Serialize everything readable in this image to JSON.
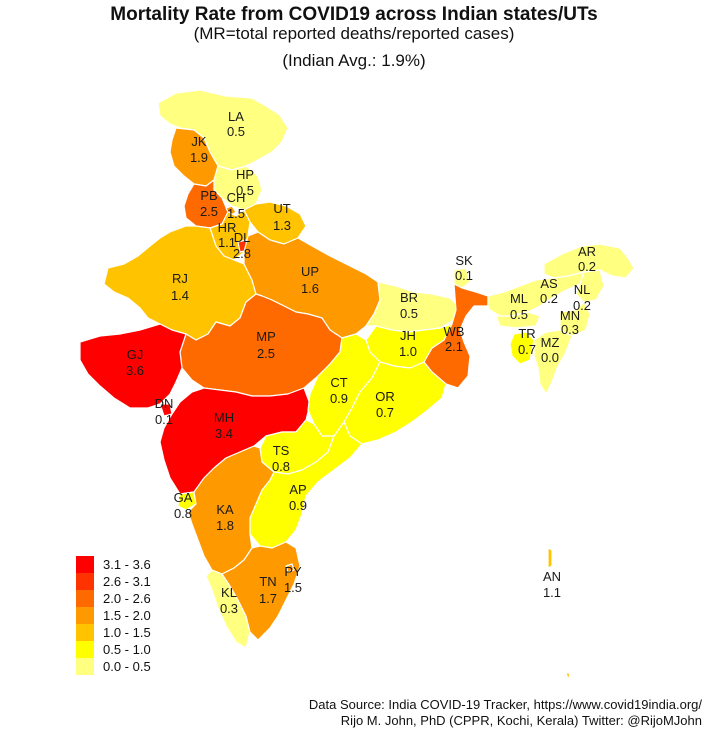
{
  "title": "Mortality Rate from COVID19 across Indian states/UTs",
  "subtitle": "(MR=total reported deaths/reported cases)",
  "average": "(Indian Avg.: 1.9%)",
  "colors": {
    "r1": "#ff0000",
    "r2": "#ff3300",
    "r3": "#ff6a00",
    "r4": "#ff9900",
    "r5": "#ffc300",
    "r6": "#ffff00",
    "r7": "#ffff80"
  },
  "legend": [
    {
      "label": "3.1 - 3.6",
      "color": "#ff0000"
    },
    {
      "label": "2.6 - 3.1",
      "color": "#ff3300"
    },
    {
      "label": "2.0 - 2.6",
      "color": "#ff6a00"
    },
    {
      "label": "1.5 - 2.0",
      "color": "#ff9900"
    },
    {
      "label": "1.0 - 1.5",
      "color": "#ffc300"
    },
    {
      "label": "0.5 - 1.0",
      "color": "#ffff00"
    },
    {
      "label": "0.0 - 0.5",
      "color": "#ffff80"
    }
  ],
  "states": [
    {
      "code": "LA",
      "value": "0.5"
    },
    {
      "code": "JK",
      "value": "1.9"
    },
    {
      "code": "HP",
      "value": "0.5"
    },
    {
      "code": "PB",
      "value": "2.5"
    },
    {
      "code": "CH",
      "value": "1.5"
    },
    {
      "code": "UT",
      "value": "1.3"
    },
    {
      "code": "HR",
      "value": "1.1"
    },
    {
      "code": "DL",
      "value": "2.8"
    },
    {
      "code": "RJ",
      "value": "1.4"
    },
    {
      "code": "UP",
      "value": "1.6"
    },
    {
      "code": "SK",
      "value": "0.1"
    },
    {
      "code": "AR",
      "value": "0.2"
    },
    {
      "code": "AS",
      "value": "0.2"
    },
    {
      "code": "NL",
      "value": "0.2"
    },
    {
      "code": "BR",
      "value": "0.5"
    },
    {
      "code": "ML",
      "value": "0.5"
    },
    {
      "code": "MN",
      "value": "0.3"
    },
    {
      "code": "GJ",
      "value": "3.6"
    },
    {
      "code": "MP",
      "value": "2.5"
    },
    {
      "code": "JH",
      "value": "1.0"
    },
    {
      "code": "WB",
      "value": "2.1"
    },
    {
      "code": "TR",
      "value": "0.7"
    },
    {
      "code": "MZ",
      "value": "0.0"
    },
    {
      "code": "CT",
      "value": "0.9"
    },
    {
      "code": "OR",
      "value": "0.7"
    },
    {
      "code": "DN",
      "value": "0.1"
    },
    {
      "code": "MH",
      "value": "3.4"
    },
    {
      "code": "TS",
      "value": "0.8"
    },
    {
      "code": "AP",
      "value": "0.9"
    },
    {
      "code": "GA",
      "value": "0.8"
    },
    {
      "code": "KA",
      "value": "1.8"
    },
    {
      "code": "AN",
      "value": "1.1"
    },
    {
      "code": "PY",
      "value": "1.5"
    },
    {
      "code": "TN",
      "value": "1.7"
    },
    {
      "code": "KL",
      "value": "0.3"
    }
  ],
  "source_line1": "Data Source: India COVID-19 Tracker, https://www.covid19india.org/",
  "source_line2": "Rijo M. John, PhD (CPPR, Kochi, Kerala) Twitter: @RijoMJohn"
}
